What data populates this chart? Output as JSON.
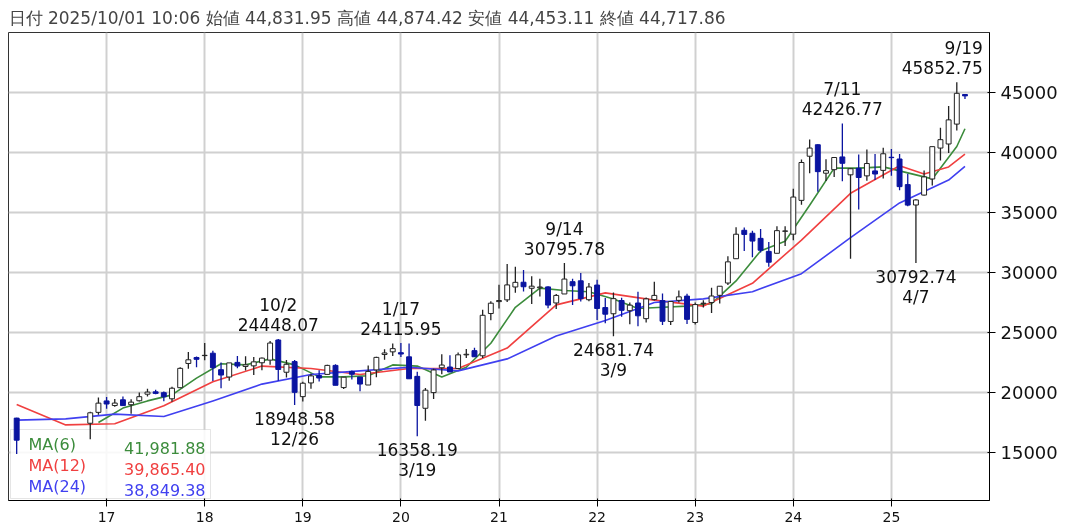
{
  "chart_data": {
    "type": "candlestick",
    "title": "日付 2025/10/01 10:06 始値 44,831.95 高値 44,874.42 安値 44,453.11 終値 44,717.86",
    "x": [
      "2016-02",
      "2016-11",
      "2016-12",
      "2017-01",
      "2017-02",
      "2017-03",
      "2017-04",
      "2017-05",
      "2017-06",
      "2017-07",
      "2017-08",
      "2017-09",
      "2017-10",
      "2017-11",
      "2017-12",
      "2018-01",
      "2018-02",
      "2018-03",
      "2018-04",
      "2018-05",
      "2018-06",
      "2018-07",
      "2018-08",
      "2018-09",
      "2018-10",
      "2018-11",
      "2018-12",
      "2019-01",
      "2019-02",
      "2019-03",
      "2019-04",
      "2019-05",
      "2019-06",
      "2019-07",
      "2019-08",
      "2019-09",
      "2019-10",
      "2019-11",
      "2019-12",
      "2020-01",
      "2020-02",
      "2020-03",
      "2020-04",
      "2020-05",
      "2020-06",
      "2020-07",
      "2020-08",
      "2020-09",
      "2020-10",
      "2020-11",
      "2020-12",
      "2021-01",
      "2021-02",
      "2021-03",
      "2021-04",
      "2021-05",
      "2021-06",
      "2021-07",
      "2021-08",
      "2021-09",
      "2021-10",
      "2021-11",
      "2021-12",
      "2022-01",
      "2022-02",
      "2022-03",
      "2022-04",
      "2022-05",
      "2022-06",
      "2022-07",
      "2022-08",
      "2022-09",
      "2022-10",
      "2022-11",
      "2022-12",
      "2023-01",
      "2023-02",
      "2023-03",
      "2023-04",
      "2023-05",
      "2023-06",
      "2023-07",
      "2023-08",
      "2023-09",
      "2023-10",
      "2023-11",
      "2023-12",
      "2024-01",
      "2024-02",
      "2024-03",
      "2024-04",
      "2024-05",
      "2024-06",
      "2024-07",
      "2024-08",
      "2024-09",
      "2024-10",
      "2024-11",
      "2024-12",
      "2025-01",
      "2025-02",
      "2025-03",
      "2025-04",
      "2025-05",
      "2025-06",
      "2025-07",
      "2025-08",
      "2025-09",
      "2025-10"
    ],
    "ohlc": [
      [
        17865,
        17905,
        14865,
        16027
      ],
      [
        17437,
        18400,
        16111,
        18308
      ],
      [
        18344,
        19592,
        18138,
        19114
      ],
      [
        19298,
        19615,
        18650,
        19041
      ],
      [
        18914,
        19449,
        18805,
        19119
      ],
      [
        19393,
        19668,
        18909,
        18909
      ],
      [
        18984,
        19445,
        18224,
        19197
      ],
      [
        19310,
        19998,
        19250,
        19651
      ],
      [
        19860,
        20318,
        19662,
        20033
      ],
      [
        20055,
        20230,
        19856,
        19925
      ],
      [
        19985,
        20080,
        19280,
        19646
      ],
      [
        19474,
        20481,
        19239,
        20356
      ],
      [
        20400,
        22100,
        20400,
        22012
      ],
      [
        22420,
        23382,
        21973,
        22725
      ],
      [
        22916,
        23000,
        22098,
        22765
      ],
      [
        23073,
        24129,
        22683,
        23098
      ],
      [
        23276,
        23486,
        20950,
        22068
      ],
      [
        21901,
        22502,
        20347,
        21454
      ],
      [
        21292,
        22468,
        20976,
        22468
      ],
      [
        22508,
        23050,
        22018,
        22202
      ],
      [
        22171,
        23011,
        21824,
        22305
      ],
      [
        22220,
        22949,
        21462,
        22554
      ],
      [
        22478,
        22924,
        21851,
        22865
      ],
      [
        22697,
        24286,
        22307,
        24120
      ],
      [
        24376,
        24448.07,
        20971,
        21920
      ],
      [
        21688,
        22698,
        21243,
        22351
      ],
      [
        22575,
        22698,
        18948.58,
        20015
      ],
      [
        19655,
        20892,
        19241,
        20773
      ],
      [
        20797,
        21556,
        20315,
        21385
      ],
      [
        21414,
        21860,
        20911,
        21206
      ],
      [
        21509,
        22307,
        21509,
        22259
      ],
      [
        22258,
        22362,
        20601,
        20601
      ],
      [
        20410,
        21300,
        20289,
        21276
      ],
      [
        21755,
        21823,
        21087,
        21522
      ],
      [
        21288,
        21288,
        20110,
        20704
      ],
      [
        20625,
        22255,
        20625,
        21756
      ],
      [
        21885,
        22974,
        21276,
        22927
      ],
      [
        23168,
        23608,
        22726,
        23294
      ],
      [
        23388,
        24091,
        23044,
        23657
      ],
      [
        23319,
        24115.95,
        22951,
        23205
      ],
      [
        22971,
        24084,
        21142,
        21143
      ],
      [
        21344,
        21719,
        16358.19,
        18917
      ],
      [
        18686,
        20365,
        17646,
        20194
      ],
      [
        19991,
        21972,
        19448,
        21878
      ],
      [
        22062,
        23185,
        21530,
        22288
      ],
      [
        22125,
        23110,
        21710,
        21710
      ],
      [
        21995,
        23338,
        21995,
        23140
      ],
      [
        23138,
        23622,
        22879,
        23185
      ],
      [
        23487,
        23725,
        22948,
        22977
      ],
      [
        23059,
        26890,
        22880,
        26434
      ],
      [
        26580,
        27602,
        26030,
        27444
      ],
      [
        27575,
        28979,
        27002,
        27663
      ],
      [
        27720,
        30714,
        27536,
        28966
      ],
      [
        28794,
        30485,
        28308,
        29179
      ],
      [
        29189,
        30208,
        28419,
        28813
      ],
      [
        28685,
        29686,
        27385,
        28860
      ],
      [
        28730,
        29480,
        28010,
        28792
      ],
      [
        28802,
        28852,
        27013,
        27284
      ],
      [
        27463,
        28213,
        26954,
        28090
      ],
      [
        28211,
        30795.78,
        28211,
        29453
      ],
      [
        29235,
        29489,
        27293,
        28893
      ],
      [
        29306,
        29960,
        27588,
        27822
      ],
      [
        27732,
        29121,
        27594,
        28792
      ],
      [
        28954,
        29388,
        26044,
        27002
      ],
      [
        27078,
        27880,
        25776,
        26527
      ],
      [
        26563,
        28338,
        24681.74,
        27821
      ],
      [
        27666,
        27900,
        26304,
        26848
      ],
      [
        26818,
        27500,
        25688,
        27280
      ],
      [
        27457,
        28389,
        25520,
        26393
      ],
      [
        26154,
        27914,
        25835,
        27802
      ],
      [
        27743,
        29222,
        27661,
        28092
      ],
      [
        27661,
        28251,
        25621,
        25937
      ],
      [
        25921,
        27587,
        25621,
        27587
      ],
      [
        27678,
        28502,
        27499,
        27969
      ],
      [
        28033,
        28226,
        25716,
        26095
      ],
      [
        25834,
        27500,
        25662,
        27327
      ],
      [
        27402,
        27697,
        27086,
        27446
      ],
      [
        27502,
        28734,
        26632,
        28041
      ],
      [
        28098,
        28879,
        27427,
        28856
      ],
      [
        29123,
        31352,
        28958,
        30888
      ],
      [
        31148,
        33772,
        31148,
        33189
      ],
      [
        33517,
        33753,
        31791,
        33172
      ],
      [
        33270,
        33488,
        31275,
        32619
      ],
      [
        32845,
        33634,
        31674,
        31858
      ],
      [
        31759,
        32533,
        30487,
        30858
      ],
      [
        31601,
        33853,
        31601,
        33487
      ],
      [
        33431,
        33853,
        32205,
        33464
      ],
      [
        33193,
        36984,
        32693,
        36287
      ],
      [
        36011,
        39426,
        35654,
        39166
      ],
      [
        39690,
        41087,
        38271,
        40369
      ],
      [
        40646,
        40697,
        36733,
        38406
      ],
      [
        38274,
        39437,
        37617,
        38487
      ],
      [
        38570,
        39600,
        37950,
        39583
      ],
      [
        39631,
        42426.77,
        37611,
        39101
      ],
      [
        38140,
        38700,
        31156,
        38647
      ],
      [
        38686,
        39829,
        35247,
        37919
      ],
      [
        38053,
        40257,
        37651,
        39081
      ],
      [
        38465,
        39884,
        37700,
        38208
      ],
      [
        38513,
        40398,
        37835,
        39894
      ],
      [
        39605,
        40288,
        38055,
        39572
      ],
      [
        39458,
        39866,
        36857,
        37156
      ],
      [
        37323,
        38220,
        35526,
        35617
      ],
      [
        35624,
        36100,
        30792.74,
        36045
      ],
      [
        36453,
        38494,
        36407,
        37965
      ],
      [
        37793,
        40487,
        37249,
        40487
      ],
      [
        40370,
        42065,
        39324,
        41070
      ],
      [
        40709,
        43876,
        39960,
        42718
      ],
      [
        42367,
        45852.75,
        41835,
        44932
      ],
      [
        44831.95,
        44874.42,
        44453.11,
        44717.86
      ]
    ],
    "series": [
      {
        "name": "MA(6) 41,981.88",
        "type": "line",
        "color": "#3c8c3c",
        "x": [
          "2016-12",
          "2017-03",
          "2017-06",
          "2017-09",
          "2017-12",
          "2018-03",
          "2018-06",
          "2018-09",
          "2018-12",
          "2019-03",
          "2019-06",
          "2019-09",
          "2019-12",
          "2020-03",
          "2020-06",
          "2020-09",
          "2020-12",
          "2021-03",
          "2021-06",
          "2021-09",
          "2021-12",
          "2022-03",
          "2022-06",
          "2022-09",
          "2022-12",
          "2023-03",
          "2023-06",
          "2023-09",
          "2023-12",
          "2024-03",
          "2024-06",
          "2024-09",
          "2024-12",
          "2025-03",
          "2025-06",
          "2025-09",
          "2025-10"
        ],
        "values": [
          17500,
          18700,
          19300,
          19800,
          21200,
          22400,
          22300,
          22800,
          22300,
          21300,
          21300,
          21400,
          22300,
          22200,
          21300,
          22100,
          24100,
          27100,
          28700,
          28500,
          28400,
          27800,
          27000,
          27100,
          27200,
          27400,
          29300,
          31800,
          32600,
          35600,
          38700,
          38700,
          38800,
          38300,
          37800,
          40500,
          41981.88
        ]
      },
      {
        "name": "MA(12) 39,865.40",
        "type": "line",
        "color": "#f04040",
        "x": [
          "2016-02",
          "2016-08",
          "2017-02",
          "2017-08",
          "2018-02",
          "2018-08",
          "2019-02",
          "2019-08",
          "2020-02",
          "2020-08",
          "2021-02",
          "2021-08",
          "2022-02",
          "2022-08",
          "2023-02",
          "2023-08",
          "2024-02",
          "2024-08",
          "2025-02",
          "2025-05",
          "2025-08",
          "2025-10"
        ],
        "values": [
          19000,
          17300,
          17400,
          18900,
          20900,
          22200,
          22000,
          21500,
          22000,
          22000,
          23700,
          27300,
          28300,
          27700,
          27200,
          29100,
          32700,
          36600,
          38900,
          38200,
          38800,
          39865.4
        ]
      },
      {
        "name": "MA(24) 38,849.38",
        "type": "line",
        "color": "#4040f0",
        "x": [
          "2016-02",
          "2016-08",
          "2017-02",
          "2017-08",
          "2018-02",
          "2018-08",
          "2019-02",
          "2019-08",
          "2020-02",
          "2020-08",
          "2021-02",
          "2021-08",
          "2022-02",
          "2022-08",
          "2023-02",
          "2023-08",
          "2024-02",
          "2024-08",
          "2025-02",
          "2025-08",
          "2025-10"
        ],
        "values": [
          17700,
          17800,
          18200,
          18000,
          19300,
          20700,
          21500,
          21800,
          22100,
          21800,
          22800,
          24700,
          26000,
          27500,
          27800,
          28400,
          29900,
          32900,
          35800,
          37700,
          38849.38
        ]
      }
    ],
    "annotations": [
      {
        "text": "10/2\n24448.07",
        "x": "2018-10",
        "y": 24448.07
      },
      {
        "text": "18948.58\n12/26",
        "x": "2018-12",
        "y": 18948.58
      },
      {
        "text": "1/17\n24115.95",
        "x": "2020-01",
        "y": 24115.95
      },
      {
        "text": "16358.19\n3/19",
        "x": "2020-03",
        "y": 16358.19
      },
      {
        "text": "9/14\n30795.78",
        "x": "2021-09",
        "y": 30795.78
      },
      {
        "text": "24681.74\n3/9",
        "x": "2022-03",
        "y": 24681.74
      },
      {
        "text": "7/11\n42426.77",
        "x": "2024-07",
        "y": 42426.77
      },
      {
        "text": "30792.74\n4/7",
        "x": "2025-04",
        "y": 30792.74
      },
      {
        "text": "9/19\n45852.75",
        "x": "2025-09",
        "y": 45852.75
      }
    ],
    "xlim": [
      "2016-01",
      "2026-01"
    ],
    "xticks": [
      {
        "value": "2017",
        "label": "17"
      },
      {
        "value": "2018",
        "label": "18"
      },
      {
        "value": "2019",
        "label": "19"
      },
      {
        "value": "2020",
        "label": "20"
      },
      {
        "value": "2021",
        "label": "21"
      },
      {
        "value": "2022",
        "label": "22"
      },
      {
        "value": "2023",
        "label": "23"
      },
      {
        "value": "2024",
        "label": "24"
      },
      {
        "value": "2025",
        "label": "25"
      }
    ],
    "ylim": [
      11000,
      50000
    ],
    "yticks": [
      15000,
      20000,
      25000,
      30000,
      35000,
      40000,
      45000
    ],
    "grid": true
  }
}
